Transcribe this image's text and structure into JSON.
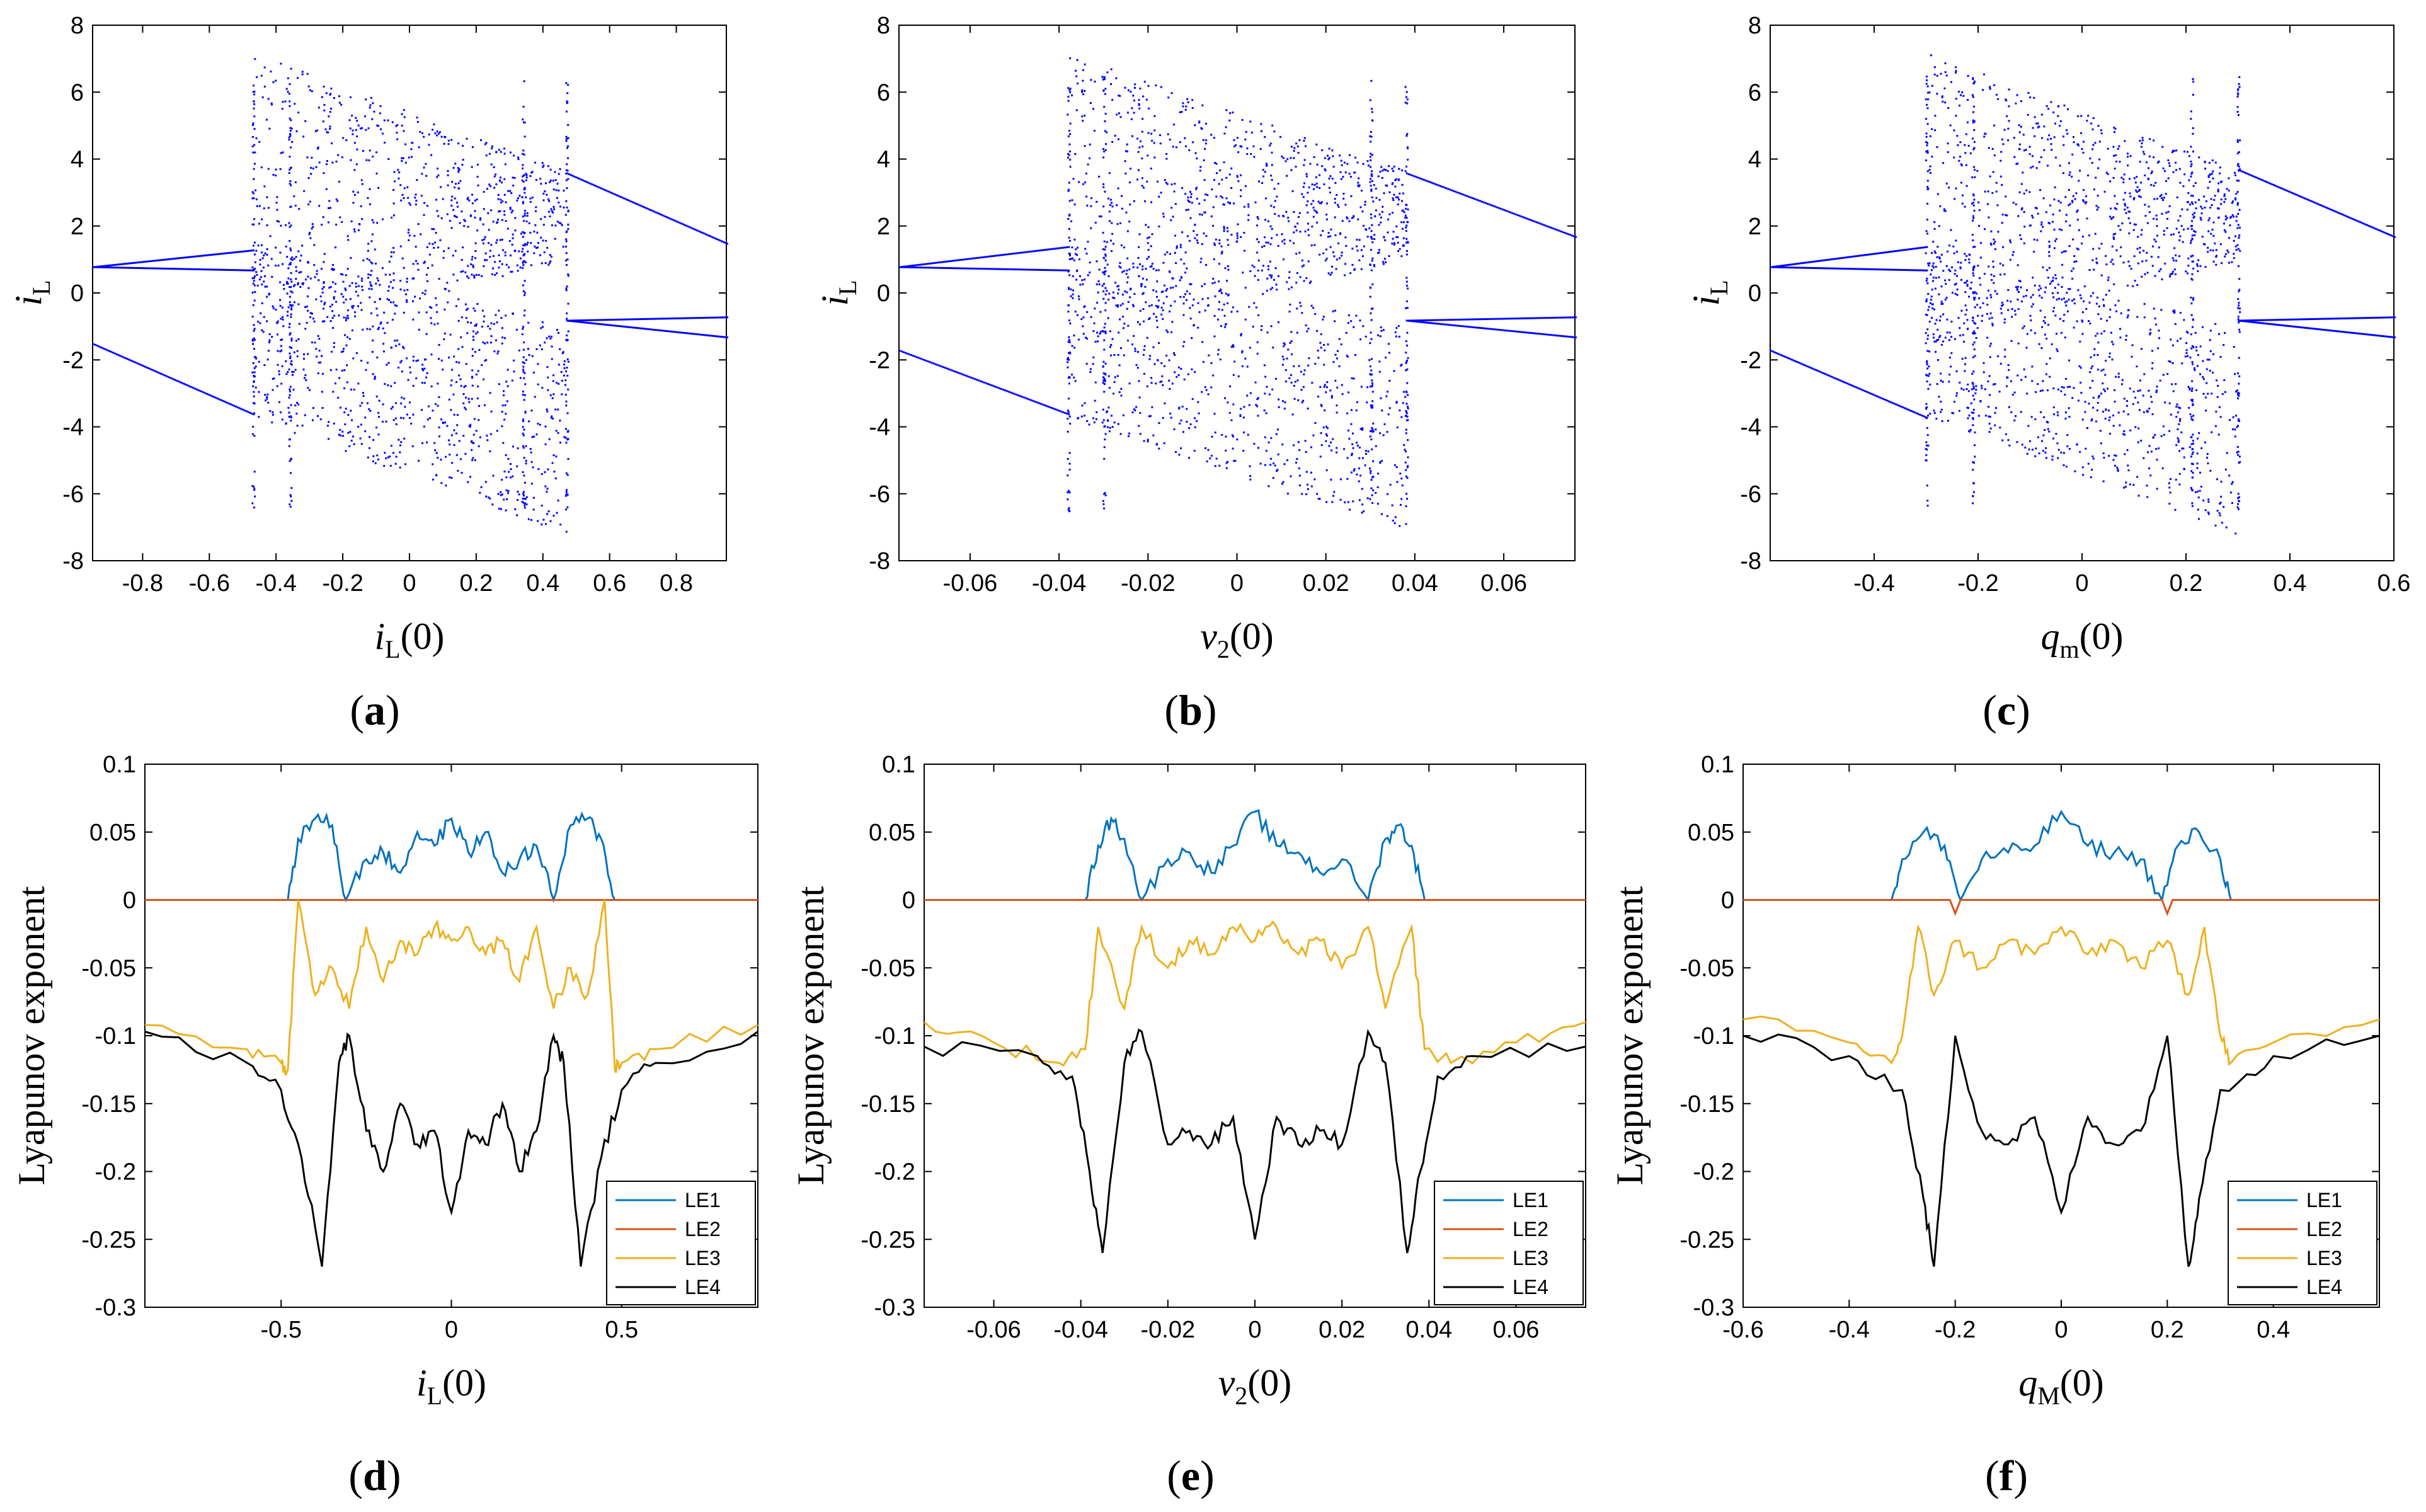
{
  "chart_data": [
    {
      "panel": "a",
      "type": "scatter",
      "color": "#0000ff",
      "xlabel": {
        "main": "i",
        "sub": "L",
        "tail": "(0)"
      },
      "ylabel": {
        "main": "i",
        "sub": "L"
      },
      "xlim": [
        -0.95,
        0.95
      ],
      "ylim": [
        -8,
        8
      ],
      "xticks": [
        -0.8,
        -0.6,
        -0.4,
        -0.2,
        0,
        0.2,
        0.4,
        0.6,
        0.8
      ],
      "xtick_labels": [
        "-0.8",
        "-0.6",
        "-0.4",
        "-0.2",
        "0",
        "0.2",
        "0.4",
        "0.6",
        "0.8"
      ],
      "yticks": [
        -8,
        -6,
        -4,
        -2,
        0,
        2,
        4,
        6,
        8
      ],
      "ytick_labels": [
        "-8",
        "-6",
        "-4",
        "-2",
        "0",
        "2",
        "4",
        "6",
        "8"
      ],
      "regions": [
        -0.47,
        -0.36,
        0.34,
        0.47
      ],
      "branches": [
        {
          "x": [
            -0.95,
            -0.47
          ],
          "y": [
            0.8,
            1.3
          ]
        },
        {
          "x": [
            -0.95,
            -0.47
          ],
          "y": [
            0.8,
            0.7
          ]
        },
        {
          "x": [
            -0.95,
            -0.47
          ],
          "y": [
            -1.5,
            -3.6
          ]
        },
        {
          "x": [
            0.47,
            0.95
          ],
          "y": [
            3.6,
            1.5
          ]
        },
        {
          "x": [
            0.47,
            0.95
          ],
          "y": [
            -0.8,
            -0.7
          ]
        },
        {
          "x": [
            0.47,
            0.95
          ],
          "y": [
            -0.8,
            -1.3
          ]
        }
      ]
    },
    {
      "panel": "b",
      "type": "scatter",
      "color": "#0000ff",
      "xlabel": {
        "main": "v",
        "sub": "2",
        "tail": "(0)"
      },
      "ylabel": {
        "main": "i",
        "sub": "L"
      },
      "xlim": [
        -0.076,
        0.076
      ],
      "ylim": [
        -8,
        8
      ],
      "xticks": [
        -0.06,
        -0.04,
        -0.02,
        0,
        0.02,
        0.04,
        0.06
      ],
      "xtick_labels": [
        "-0.06",
        "-0.04",
        "-0.02",
        "0",
        "0.02",
        "0.04",
        "0.06"
      ],
      "yticks": [
        -8,
        -6,
        -4,
        -2,
        0,
        2,
        4,
        6,
        8
      ],
      "ytick_labels": [
        "-8",
        "-6",
        "-4",
        "-2",
        "0",
        "2",
        "4",
        "6",
        "8"
      ],
      "regions": [
        -0.038,
        -0.03,
        0.03,
        0.038
      ],
      "branches": [
        {
          "x": [
            -0.076,
            -0.038
          ],
          "y": [
            0.8,
            1.4
          ]
        },
        {
          "x": [
            -0.076,
            -0.038
          ],
          "y": [
            0.8,
            0.7
          ]
        },
        {
          "x": [
            -0.076,
            -0.038
          ],
          "y": [
            -1.7,
            -3.6
          ]
        },
        {
          "x": [
            0.038,
            0.076
          ],
          "y": [
            3.6,
            1.7
          ]
        },
        {
          "x": [
            0.038,
            0.076
          ],
          "y": [
            -0.8,
            -0.7
          ]
        },
        {
          "x": [
            0.038,
            0.076
          ],
          "y": [
            -0.8,
            -1.3
          ]
        }
      ]
    },
    {
      "panel": "c",
      "type": "scatter",
      "color": "#0000ff",
      "xlabel": {
        "main": "q",
        "sub": "m",
        "tail": "(0)"
      },
      "ylabel": {
        "main": "i",
        "sub": "L"
      },
      "xlim": [
        -0.6,
        0.6
      ],
      "ylim": [
        -8,
        8
      ],
      "xticks": [
        -0.4,
        -0.2,
        0,
        0.2,
        0.4,
        0.6
      ],
      "xtick_labels": [
        "-0.4",
        "-0.2",
        "0",
        "0.2",
        "0.4",
        "0.6"
      ],
      "yticks": [
        -8,
        -6,
        -4,
        -2,
        0,
        2,
        4,
        6,
        8
      ],
      "ytick_labels": [
        "-8",
        "-6",
        "-4",
        "-2",
        "0",
        "2",
        "4",
        "6",
        "8"
      ],
      "regions": [
        -0.3,
        -0.21,
        0.21,
        0.3
      ],
      "branches": [
        {
          "x": [
            -0.6,
            -0.3
          ],
          "y": [
            0.8,
            1.4
          ]
        },
        {
          "x": [
            -0.6,
            -0.3
          ],
          "y": [
            0.8,
            0.7
          ]
        },
        {
          "x": [
            -0.6,
            -0.3
          ],
          "y": [
            -1.7,
            -3.7
          ]
        },
        {
          "x": [
            0.3,
            0.6
          ],
          "y": [
            3.7,
            1.7
          ]
        },
        {
          "x": [
            0.3,
            0.6
          ],
          "y": [
            -0.8,
            -0.7
          ]
        },
        {
          "x": [
            0.3,
            0.6
          ],
          "y": [
            -0.8,
            -1.3
          ]
        }
      ]
    },
    {
      "panel": "d",
      "type": "line",
      "xlabel": {
        "main": "i",
        "sub": "L",
        "tail": "(0)"
      },
      "ylabel": "Lyapunov exponent",
      "xlim": [
        -0.9,
        0.9
      ],
      "ylim": [
        -0.3,
        0.1
      ],
      "xticks": [
        -0.5,
        0,
        0.5
      ],
      "xtick_labels": [
        "-0.5",
        "0",
        "0.5"
      ],
      "yticks": [
        0.1,
        0.05,
        0,
        -0.05,
        -0.1,
        -0.15,
        -0.2,
        -0.25,
        -0.3
      ],
      "ytick_labels": [
        "0.1",
        "0.05",
        "0",
        "-0.05",
        "-0.1",
        "-0.15",
        "-0.2",
        "-0.25",
        "-0.3"
      ],
      "chaos_windows": [
        [
          -0.48,
          -0.4
        ],
        [
          -0.3,
          0.3
        ],
        [
          0.4,
          0.48
        ]
      ],
      "series": [
        {
          "name": "LE1",
          "color": "#0072bd",
          "x": [
            -0.9,
            -0.48,
            -0.45,
            -0.4,
            -0.35,
            -0.31,
            -0.25,
            -0.2,
            -0.15,
            -0.1,
            -0.05,
            0,
            0.05,
            0.1,
            0.15,
            0.2,
            0.25,
            0.3,
            0.35,
            0.4,
            0.44,
            0.48,
            0.9
          ],
          "y": [
            0,
            0,
            0.045,
            0.06,
            0.055,
            0,
            0.03,
            0.035,
            0.02,
            0.05,
            0.04,
            0.06,
            0.035,
            0.05,
            0.02,
            0.03,
            0.04,
            0,
            0.055,
            0.06,
            0.045,
            0,
            0
          ]
        },
        {
          "name": "LE2",
          "color": "#d95319",
          "x": [
            -0.9,
            0.9
          ],
          "y": [
            0,
            0
          ]
        },
        {
          "name": "LE3",
          "color": "#edb120",
          "x": [
            -0.9,
            -0.6,
            -0.5,
            -0.48,
            -0.45,
            -0.4,
            -0.35,
            -0.3,
            -0.25,
            -0.2,
            -0.15,
            -0.1,
            -0.05,
            0,
            0.05,
            0.1,
            0.15,
            0.2,
            0.25,
            0.3,
            0.35,
            0.4,
            0.45,
            0.48,
            0.5,
            0.6,
            0.9
          ],
          "y": [
            -0.092,
            -0.11,
            -0.12,
            -0.125,
            0,
            -0.07,
            -0.05,
            -0.08,
            -0.02,
            -0.06,
            -0.03,
            -0.04,
            -0.02,
            -0.03,
            -0.02,
            -0.04,
            -0.03,
            -0.06,
            -0.02,
            -0.08,
            -0.05,
            -0.07,
            0,
            -0.125,
            -0.12,
            -0.11,
            -0.092
          ]
        },
        {
          "name": "LE4",
          "color": "#000000",
          "x": [
            -0.9,
            -0.6,
            -0.5,
            -0.44,
            -0.38,
            -0.33,
            -0.3,
            -0.25,
            -0.2,
            -0.15,
            -0.1,
            -0.05,
            0,
            0.05,
            0.1,
            0.15,
            0.2,
            0.25,
            0.3,
            0.33,
            0.38,
            0.44,
            0.5,
            0.6,
            0.9
          ],
          "y": [
            -0.097,
            -0.12,
            -0.14,
            -0.19,
            -0.27,
            -0.12,
            -0.1,
            -0.17,
            -0.2,
            -0.15,
            -0.18,
            -0.17,
            -0.23,
            -0.17,
            -0.18,
            -0.15,
            -0.2,
            -0.17,
            -0.1,
            -0.12,
            -0.27,
            -0.19,
            -0.14,
            -0.12,
            -0.097
          ]
        }
      ],
      "legend": [
        "LE1",
        "LE2",
        "LE3",
        "LE4"
      ],
      "legend_position": "bottom-right"
    },
    {
      "panel": "e",
      "type": "line",
      "xlabel": {
        "main": "v",
        "sub": "2",
        "tail": "(0)"
      },
      "ylabel": "Lyapunov exponent",
      "xlim": [
        -0.076,
        0.076
      ],
      "ylim": [
        -0.3,
        0.1
      ],
      "xticks": [
        -0.06,
        -0.04,
        -0.02,
        0,
        0.02,
        0.04,
        0.06
      ],
      "xtick_labels": [
        "-0.06",
        "-0.04",
        "-0.02",
        "0",
        "0.02",
        "0.04",
        "0.06"
      ],
      "yticks": [
        0.1,
        0.05,
        0,
        -0.05,
        -0.1,
        -0.15,
        -0.2,
        -0.25,
        -0.3
      ],
      "ytick_labels": [
        "0.1",
        "0.05",
        "0",
        "-0.05",
        "-0.1",
        "-0.15",
        "-0.2",
        "-0.25",
        "-0.3"
      ],
      "series": [
        {
          "name": "LE1",
          "color": "#0072bd",
          "x": [
            -0.076,
            -0.039,
            -0.036,
            -0.033,
            -0.03,
            -0.026,
            -0.02,
            -0.015,
            -0.01,
            -0.005,
            0,
            0.005,
            0.01,
            0.015,
            0.02,
            0.026,
            0.03,
            0.033,
            0.036,
            0.039,
            0.076
          ],
          "y": [
            0,
            0,
            0.04,
            0.06,
            0.045,
            0,
            0.03,
            0.035,
            0.02,
            0.04,
            0.065,
            0.04,
            0.035,
            0.02,
            0.03,
            0,
            0.045,
            0.055,
            0.04,
            0,
            0
          ]
        },
        {
          "name": "LE2",
          "color": "#d95319",
          "x": [
            -0.076,
            0.076
          ],
          "y": [
            0,
            0
          ]
        },
        {
          "name": "LE3",
          "color": "#edb120",
          "x": [
            -0.076,
            -0.06,
            -0.045,
            -0.039,
            -0.036,
            -0.03,
            -0.026,
            -0.02,
            -0.015,
            -0.01,
            -0.005,
            0,
            0.005,
            0.01,
            0.015,
            0.02,
            0.026,
            0.03,
            0.036,
            0.039,
            0.045,
            0.06,
            0.076
          ],
          "y": [
            -0.09,
            -0.105,
            -0.12,
            -0.11,
            -0.02,
            -0.08,
            -0.02,
            -0.05,
            -0.03,
            -0.04,
            -0.02,
            -0.03,
            -0.02,
            -0.04,
            -0.03,
            -0.05,
            -0.02,
            -0.08,
            -0.02,
            -0.11,
            -0.12,
            -0.105,
            -0.09
          ]
        },
        {
          "name": "LE4",
          "color": "#000000",
          "x": [
            -0.076,
            -0.05,
            -0.042,
            -0.038,
            -0.035,
            -0.03,
            -0.026,
            -0.02,
            -0.015,
            -0.01,
            -0.005,
            0,
            0.005,
            0.01,
            0.015,
            0.02,
            0.026,
            0.03,
            0.035,
            0.038,
            0.042,
            0.05,
            0.076
          ],
          "y": [
            -0.108,
            -0.115,
            -0.13,
            -0.2,
            -0.26,
            -0.12,
            -0.097,
            -0.18,
            -0.17,
            -0.18,
            -0.16,
            -0.25,
            -0.16,
            -0.18,
            -0.17,
            -0.18,
            -0.097,
            -0.12,
            -0.26,
            -0.2,
            -0.13,
            -0.115,
            -0.108
          ]
        }
      ],
      "legend": [
        "LE1",
        "LE2",
        "LE3",
        "LE4"
      ],
      "legend_position": "bottom-right"
    },
    {
      "panel": "f",
      "type": "line",
      "xlabel": {
        "main": "q",
        "sub": "M",
        "tail": "(0)"
      },
      "ylabel": "Lyapunov exponent",
      "xlim": [
        -0.6,
        0.6
      ],
      "ylim": [
        -0.3,
        0.1
      ],
      "xticks": [
        -0.6,
        -0.4,
        -0.2,
        0,
        0.2,
        0.4
      ],
      "xtick_labels": [
        "-0.6",
        "-0.4",
        "-0.2",
        "0",
        "0.2",
        "0.4"
      ],
      "yticks": [
        0.1,
        0.05,
        0,
        -0.05,
        -0.1,
        -0.15,
        -0.2,
        -0.25,
        -0.3
      ],
      "ytick_labels": [
        "0.1",
        "0.05",
        "0",
        "-0.05",
        "-0.1",
        "-0.15",
        "-0.2",
        "-0.25",
        "-0.3"
      ],
      "series": [
        {
          "name": "LE1",
          "color": "#0072bd",
          "x": [
            -0.6,
            -0.32,
            -0.3,
            -0.26,
            -0.22,
            -0.19,
            -0.15,
            -0.1,
            -0.05,
            0,
            0.05,
            0.1,
            0.15,
            0.19,
            0.22,
            0.26,
            0.3,
            0.32,
            0.6
          ],
          "y": [
            0,
            0,
            0.03,
            0.05,
            0.04,
            0,
            0.03,
            0.035,
            0.04,
            0.065,
            0.04,
            0.035,
            0.03,
            0,
            0.04,
            0.05,
            0.03,
            0,
            0
          ]
        },
        {
          "name": "LE2",
          "color": "#d95319",
          "x": [
            -0.6,
            -0.21,
            -0.2,
            -0.19,
            0.19,
            0.2,
            0.21,
            0.6
          ],
          "y": [
            0,
            0,
            -0.01,
            0,
            0,
            -0.01,
            0,
            0
          ]
        },
        {
          "name": "LE3",
          "color": "#edb120",
          "x": [
            -0.6,
            -0.4,
            -0.32,
            -0.3,
            -0.27,
            -0.24,
            -0.2,
            -0.15,
            -0.1,
            -0.05,
            0,
            0.05,
            0.1,
            0.15,
            0.2,
            0.24,
            0.27,
            0.3,
            0.32,
            0.4,
            0.6
          ],
          "y": [
            -0.088,
            -0.105,
            -0.12,
            -0.1,
            -0.02,
            -0.07,
            -0.03,
            -0.05,
            -0.03,
            -0.04,
            -0.02,
            -0.04,
            -0.03,
            -0.05,
            -0.03,
            -0.07,
            -0.02,
            -0.1,
            -0.12,
            -0.105,
            -0.088
          ]
        },
        {
          "name": "LE4",
          "color": "#000000",
          "x": [
            -0.6,
            -0.4,
            -0.3,
            -0.26,
            -0.24,
            -0.2,
            -0.15,
            -0.1,
            -0.05,
            0,
            0.05,
            0.1,
            0.15,
            0.2,
            0.24,
            0.26,
            0.3,
            0.4,
            0.6
          ],
          "y": [
            -0.1,
            -0.115,
            -0.14,
            -0.22,
            -0.27,
            -0.1,
            -0.17,
            -0.18,
            -0.16,
            -0.23,
            -0.16,
            -0.18,
            -0.17,
            -0.1,
            -0.27,
            -0.22,
            -0.14,
            -0.115,
            -0.1
          ]
        }
      ],
      "legend": [
        "LE1",
        "LE2",
        "LE3",
        "LE4"
      ],
      "legend_position": "bottom-right"
    }
  ]
}
